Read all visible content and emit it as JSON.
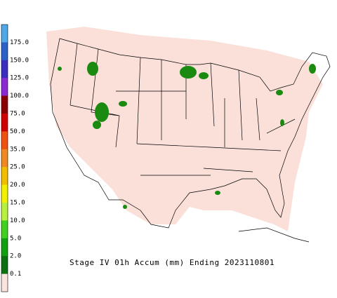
{
  "title": "Stage IV 01h Accum (mm) Ending 2023110801",
  "legend": {
    "labels": [
      "175.0",
      "150.0",
      "125.0",
      "100.0",
      "75.0",
      "50.0",
      "35.0",
      "25.0",
      "20.0",
      "15.0",
      "10.0",
      "5.0",
      "2.0",
      "0.1"
    ],
    "colors": [
      "#4fa8e8",
      "#2a60c8",
      "#3a2cc0",
      "#8a2ad0",
      "#8a0000",
      "#d00000",
      "#f05010",
      "#f08a20",
      "#f0c000",
      "#f0f000",
      "#b8f040",
      "#40d020",
      "#10a010",
      "#0a7010",
      "#fbe4e0"
    ]
  }
}
